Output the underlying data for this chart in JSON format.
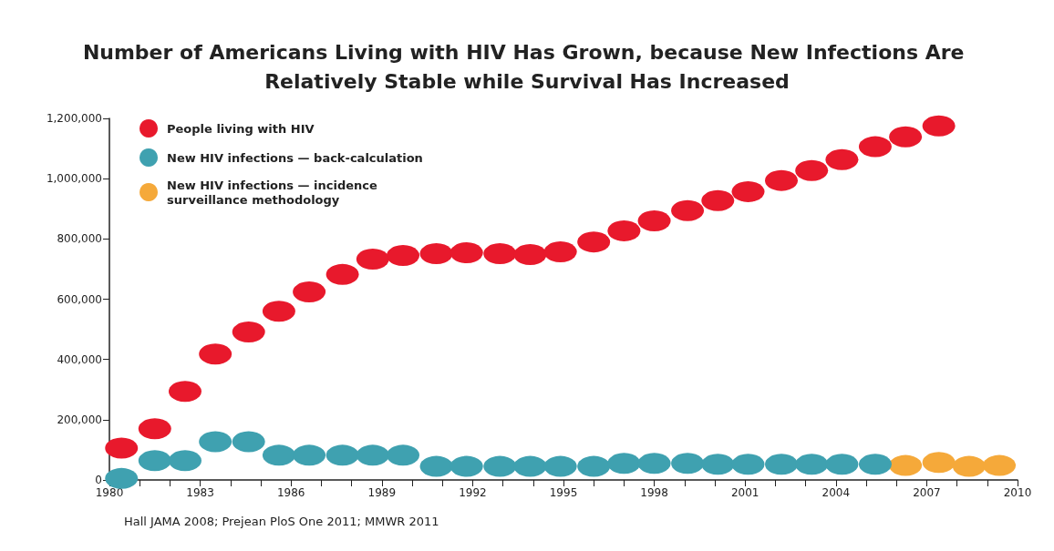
{
  "chart_data": {
    "type": "scatter",
    "title": "Number of Americans Living with HIV Has Grown, because New Infections Are Relatively Stable while Survival Has Increased",
    "x": [
      1980.4,
      1981.5,
      1982.5,
      1983.5,
      1984.6,
      1985.6,
      1986.6,
      1987.7,
      1988.7,
      1989.7,
      1990.8,
      1991.8,
      1992.9,
      1993.9,
      1994.9,
      1996.0,
      1997.0,
      1998.0,
      1999.1,
      2000.1,
      2001.1,
      2002.2,
      2003.2,
      2004.2,
      2005.3,
      2006.3,
      2007.4
    ],
    "series": [
      {
        "name": "People living with HIV",
        "color": "#e8192c",
        "values": [
          106000,
          170000,
          294000,
          418000,
          491000,
          560000,
          624000,
          682000,
          733000,
          745000,
          751000,
          754000,
          751000,
          748000,
          757000,
          790000,
          827000,
          860000,
          894000,
          927000,
          957000,
          994000,
          1027000,
          1063000,
          1106000,
          1139000,
          1175000
        ]
      },
      {
        "name": "New HIV infections — back-calculation",
        "color": "#3fa1b0",
        "x": [
          1980.4,
          1981.5,
          1982.5,
          1983.5,
          1984.6,
          1985.6,
          1986.6,
          1987.7,
          1988.7,
          1989.7,
          1990.8,
          1991.8,
          1992.9,
          1993.9,
          1994.9,
          1996.0,
          1997.0,
          1998.0,
          1999.1,
          2000.1,
          2001.1,
          2002.2,
          2003.2,
          2004.2,
          2005.3
        ],
        "values": [
          5000,
          64000,
          64000,
          127000,
          127000,
          82000,
          82000,
          82000,
          82000,
          82000,
          45000,
          45000,
          45000,
          45000,
          45000,
          45000,
          55000,
          55000,
          55000,
          52000,
          52000,
          52000,
          52000,
          52000,
          52000
        ]
      },
      {
        "name": "New HIV infections — incidence surveillance methodology",
        "color": "#f5a93a",
        "x": [
          2006.3,
          2007.4,
          2008.4,
          2009.4
        ],
        "values": [
          48000,
          58000,
          45000,
          48000
        ]
      }
    ],
    "xlim": [
      1980,
      2010
    ],
    "xticks": [
      1980,
      {
        "value": 1981,
        "label": null
      },
      {
        "value": 1982,
        "label": null
      },
      1983,
      {
        "value": 1984,
        "label": null
      },
      {
        "value": 1985,
        "label": null
      },
      1986,
      {
        "value": 1987,
        "label": null
      },
      {
        "value": 1988,
        "label": null
      },
      1989,
      {
        "value": 1990,
        "label": null
      },
      {
        "value": 1991,
        "label": null
      },
      1992,
      {
        "value": 1993,
        "label": null
      },
      {
        "value": 1994,
        "label": null
      },
      1995,
      {
        "value": 1996,
        "label": null
      },
      {
        "value": 1997,
        "label": null
      },
      1998,
      {
        "value": 1999,
        "label": null
      },
      {
        "value": 2000,
        "label": null
      },
      2001,
      {
        "value": 2002,
        "label": null
      },
      {
        "value": 2003,
        "label": null
      },
      2004,
      {
        "value": 2005,
        "label": null
      },
      {
        "value": 2006,
        "label": null
      },
      2007,
      {
        "value": 2008,
        "label": null
      },
      {
        "value": 2009,
        "label": null
      },
      2010
    ],
    "ylim": [
      0,
      1200000
    ],
    "yticks": [
      0,
      {
        "value": 200000,
        "label": "200,000"
      },
      {
        "value": 400000,
        "label": "400,000"
      },
      {
        "value": 600000,
        "label": "600,000"
      },
      {
        "value": 800000,
        "label": "800,000"
      },
      {
        "value": 1000000,
        "label": "1,000,000"
      },
      {
        "value": 1200000,
        "label": "1,200,000"
      }
    ],
    "grid": false,
    "legend": "top left",
    "marker": "circle",
    "annotations": [
      "Hall JAMA 2008; Prejean PloS One 2011; MMWR 2011"
    ]
  }
}
